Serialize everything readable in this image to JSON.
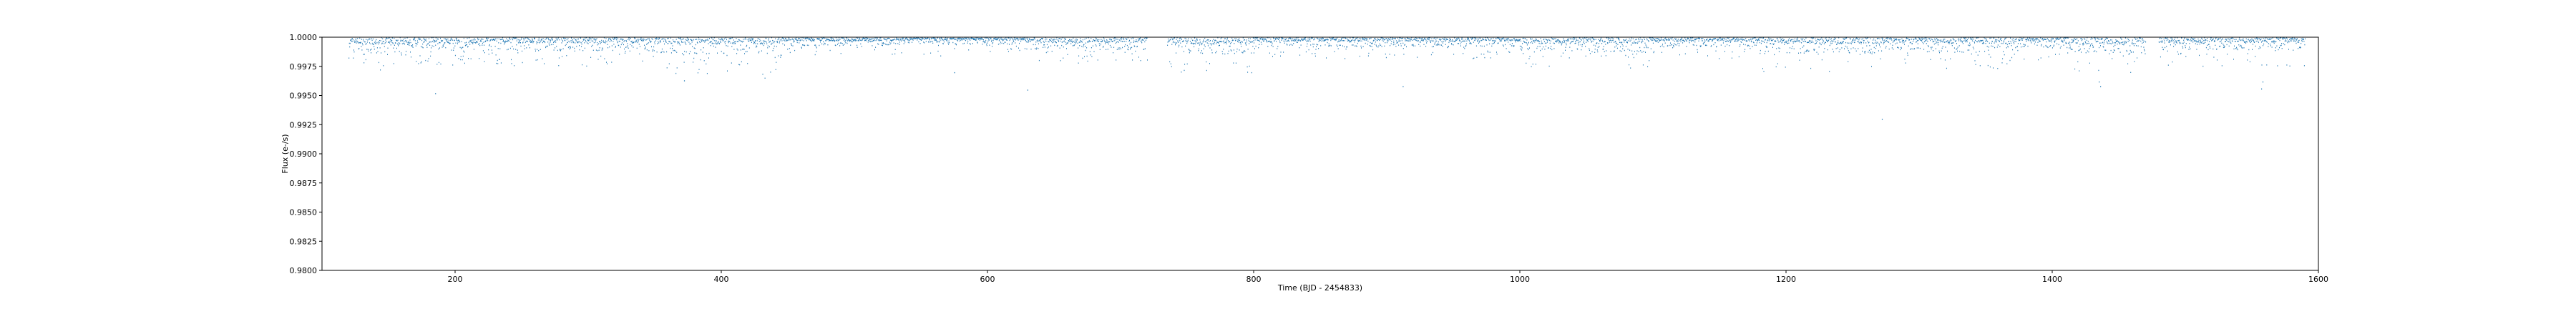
{
  "chart_data": {
    "type": "scatter",
    "title": "",
    "xlabel": "Time (BJD - 2454833)",
    "ylabel": "Flux (e-/s)",
    "xlim": [
      100,
      1600
    ],
    "ylim": [
      0.98,
      1.0
    ],
    "xticks": [
      200,
      400,
      600,
      800,
      1000,
      1200,
      1400,
      1600
    ],
    "yticks": [
      "0.9800",
      "0.9825",
      "0.9850",
      "0.9875",
      "0.9900",
      "0.9925",
      "0.9950",
      "0.9975",
      "1.0000"
    ],
    "grid": false,
    "legend": "none",
    "color": "#1f77b4",
    "quarters": [
      {
        "start": 120,
        "end": 131,
        "depth_mean": 0.0011,
        "depth_max": 0.0024
      },
      {
        "start": 131,
        "end": 165,
        "depth_mean": 0.0013,
        "depth_max": 0.003
      },
      {
        "start": 165,
        "end": 182,
        "depth_mean": 0.0019,
        "depth_max": 0.0036
      },
      {
        "start": 182,
        "end": 258,
        "depth_mean": 0.001,
        "depth_max": 0.0024
      },
      {
        "start": 258,
        "end": 350,
        "depth_mean": 0.001,
        "depth_max": 0.0025
      },
      {
        "start": 350,
        "end": 442,
        "depth_mean": 0.0012,
        "depth_max": 0.0035
      },
      {
        "start": 442,
        "end": 538,
        "depth_mean": 0.0006,
        "depth_max": 0.0017
      },
      {
        "start": 538,
        "end": 630,
        "depth_mean": 0.0005,
        "depth_max": 0.0016
      },
      {
        "start": 630,
        "end": 720,
        "depth_mean": 0.0009,
        "depth_max": 0.0022
      },
      {
        "start": 735,
        "end": 800,
        "depth_mean": 0.0012,
        "depth_max": 0.003
      },
      {
        "start": 800,
        "end": 905,
        "depth_mean": 0.0007,
        "depth_max": 0.0018
      },
      {
        "start": 905,
        "end": 1000,
        "depth_mean": 0.0007,
        "depth_max": 0.0019
      },
      {
        "start": 1000,
        "end": 1100,
        "depth_mean": 0.0011,
        "depth_max": 0.0027
      },
      {
        "start": 1100,
        "end": 1180,
        "depth_mean": 0.0007,
        "depth_max": 0.0018
      },
      {
        "start": 1180,
        "end": 1275,
        "depth_mean": 0.0012,
        "depth_max": 0.003
      },
      {
        "start": 1275,
        "end": 1305,
        "depth_mean": 0.0009,
        "depth_max": 0.0022
      },
      {
        "start": 1305,
        "end": 1375,
        "depth_mean": 0.0011,
        "depth_max": 0.0027
      },
      {
        "start": 1375,
        "end": 1410,
        "depth_mean": 0.0007,
        "depth_max": 0.002
      },
      {
        "start": 1410,
        "end": 1470,
        "depth_mean": 0.0012,
        "depth_max": 0.003
      },
      {
        "start": 1480,
        "end": 1590,
        "depth_mean": 0.0009,
        "depth_max": 0.0025
      }
    ],
    "outliers": [
      {
        "x": 185,
        "y": 0.9952
      },
      {
        "x": 372,
        "y": 0.9963
      },
      {
        "x": 575,
        "y": 0.997
      },
      {
        "x": 630,
        "y": 0.9955
      },
      {
        "x": 912,
        "y": 0.9958
      },
      {
        "x": 1272,
        "y": 0.993
      },
      {
        "x": 1435,
        "y": 0.9962
      },
      {
        "x": 1436,
        "y": 0.9958
      },
      {
        "x": 1557,
        "y": 0.9956
      },
      {
        "x": 1558,
        "y": 0.9962
      }
    ]
  }
}
